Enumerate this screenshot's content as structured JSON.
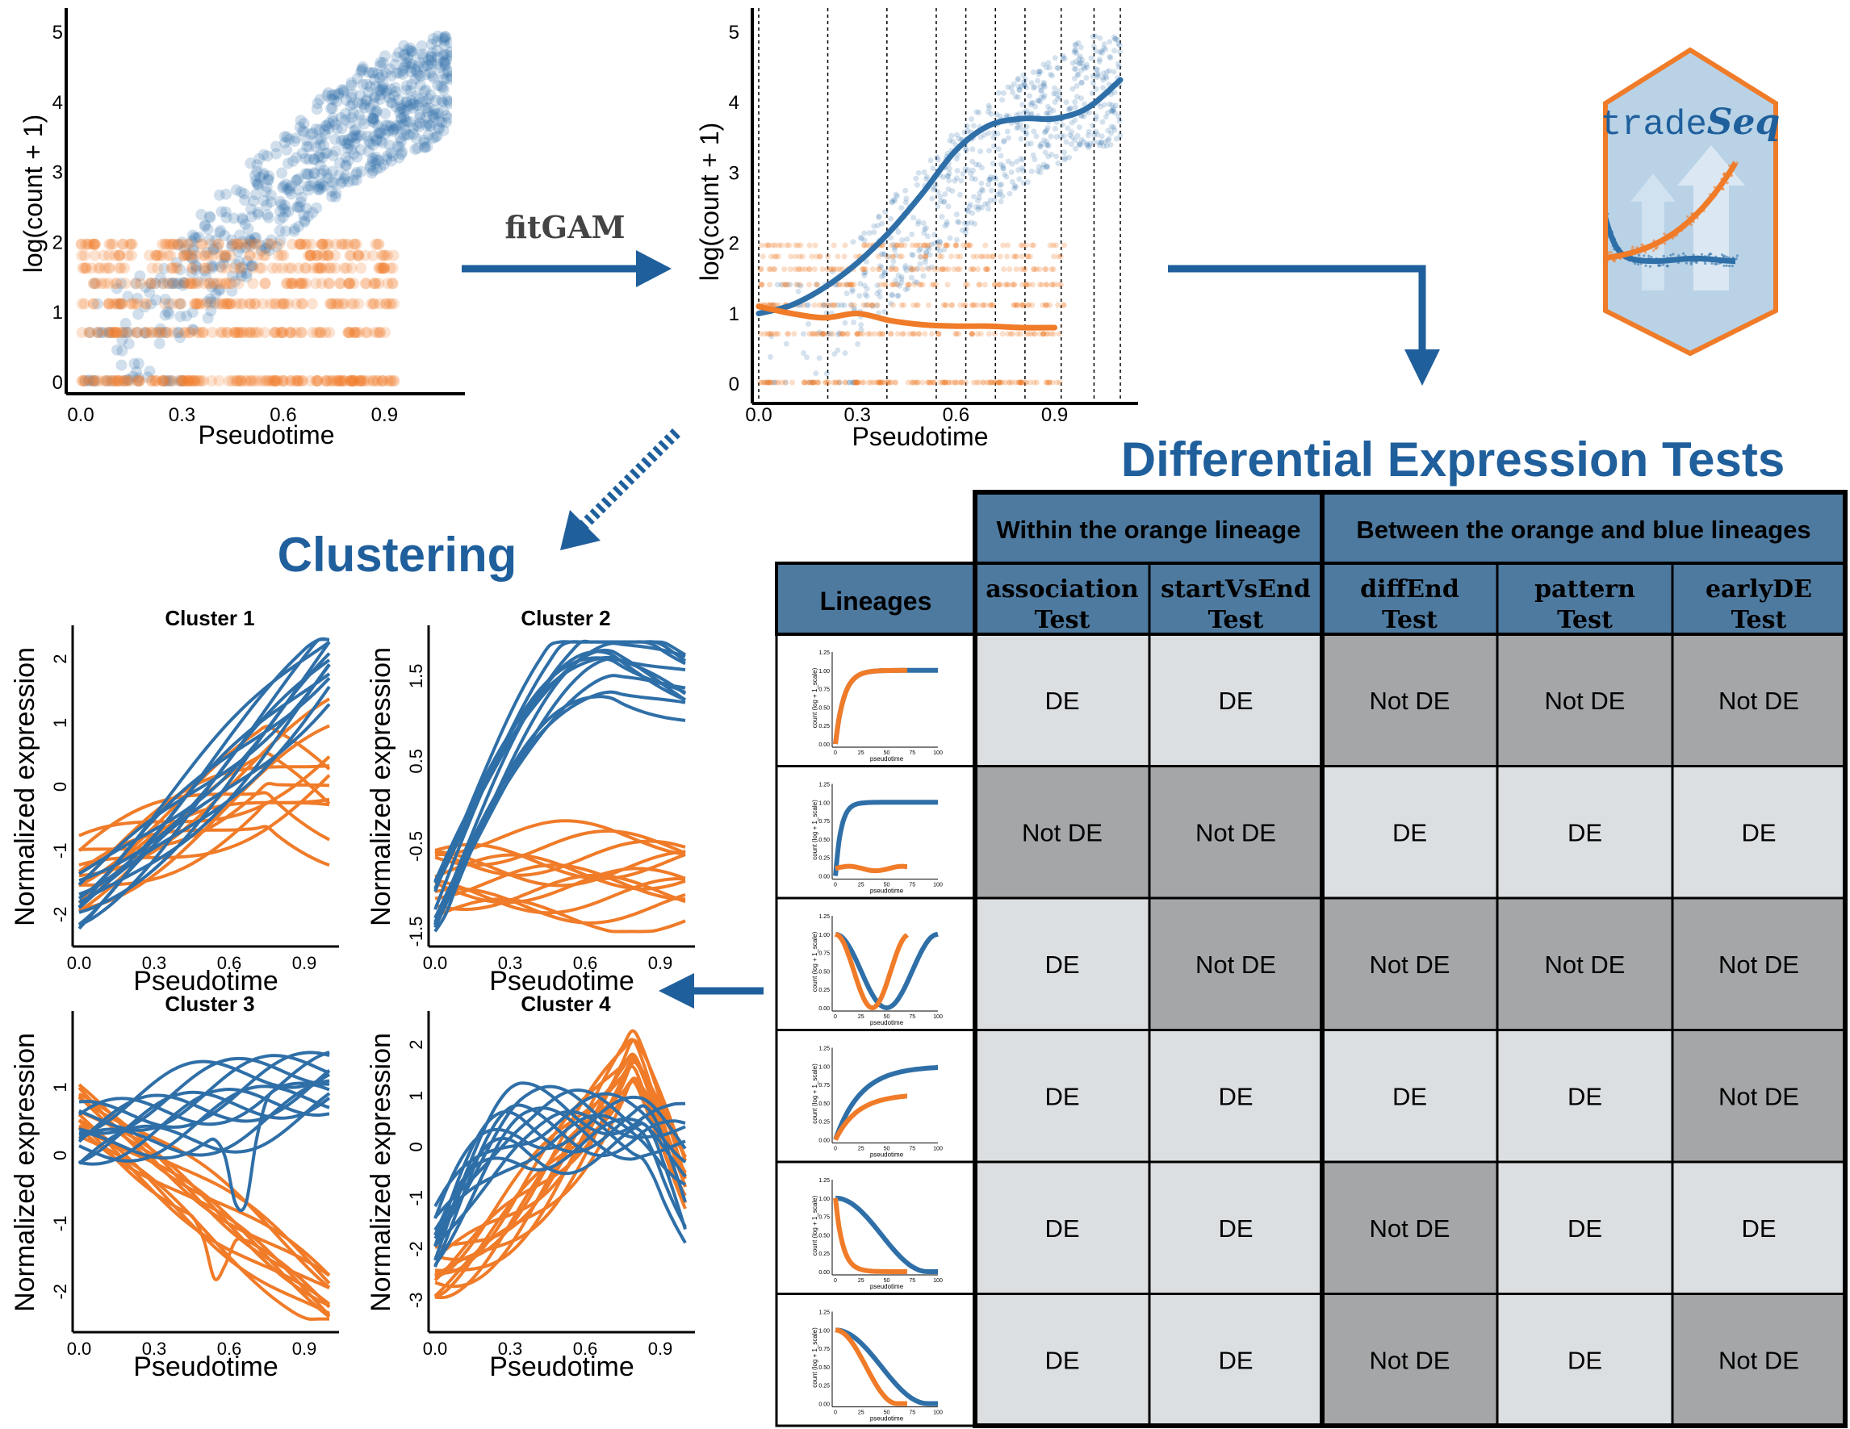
{
  "colors": {
    "blue": "#2f6fa8",
    "orange": "#f07b28",
    "dark_blue": "#1f5f9c",
    "header_fill": "#4e7aa0",
    "cell_light": "#dcdfe2",
    "cell_dark": "#a4a6a7",
    "logo_bg": "#b9d2e6"
  },
  "arrow_label": "fitGAM",
  "clustering_title": "Clustering",
  "de_title": "Differential Expression Tests",
  "logo": {
    "text_a": "trade",
    "text_b": "Seq"
  },
  "scatter_plot": {
    "xlabel": "Pseudotime",
    "ylabel": "log(count + 1)",
    "xticks": [
      "0.0",
      "0.3",
      "0.6",
      "0.9"
    ],
    "yticks": [
      "0",
      "1",
      "2",
      "3",
      "4",
      "5"
    ]
  },
  "fit_plot": {
    "xlabel": "Pseudotime",
    "ylabel": "log(count + 1)",
    "xticks": [
      "0.0",
      "0.3",
      "0.6",
      "0.9"
    ],
    "yticks": [
      "0",
      "1",
      "2",
      "3",
      "4",
      "5"
    ]
  },
  "chart_data": [
    {
      "type": "scatter",
      "xlabel": "Pseudotime",
      "ylabel": "log(count + 1)",
      "xlim": [
        0,
        1.1
      ],
      "ylim": [
        0,
        5
      ],
      "series": [
        {
          "color": "blue",
          "description_trend": "rises from ~0.3 to ~4.2 across pseudotime"
        },
        {
          "color": "orange",
          "description_trend": "stays at discrete low levels 0-1.6"
        }
      ]
    },
    {
      "type": "line",
      "xlabel": "Pseudotime",
      "ylabel": "log(count + 1)",
      "xlim": [
        0,
        1.1
      ],
      "ylim": [
        0,
        5
      ],
      "knots": [
        0.0,
        0.21,
        0.39,
        0.54,
        0.63,
        0.72,
        0.81,
        0.92,
        1.02,
        1.1
      ],
      "series": [
        {
          "color": "blue",
          "x": [
            0.0,
            0.1,
            0.2,
            0.3,
            0.4,
            0.5,
            0.6,
            0.7,
            0.8,
            0.9,
            1.0,
            1.1
          ],
          "y": [
            0.98,
            1.1,
            1.35,
            1.7,
            2.15,
            2.7,
            3.3,
            3.65,
            3.75,
            3.75,
            3.9,
            4.3
          ]
        },
        {
          "color": "orange",
          "x": [
            0.0,
            0.1,
            0.2,
            0.3,
            0.4,
            0.5,
            0.6,
            0.7,
            0.8,
            0.9
          ],
          "y": [
            1.08,
            0.98,
            0.92,
            0.98,
            0.88,
            0.82,
            0.8,
            0.8,
            0.78,
            0.78
          ]
        }
      ]
    },
    {
      "type": "line",
      "title": "Cluster 1",
      "xlabel": "Pseudotime",
      "ylabel": "Normalized expression",
      "ylim": [
        -2.4,
        2.4
      ]
    },
    {
      "type": "line",
      "title": "Cluster 2",
      "xlabel": "Pseudotime",
      "ylabel": "Normalized expression",
      "ylim": [
        -1.6,
        2.0
      ]
    },
    {
      "type": "line",
      "title": "Cluster 3",
      "xlabel": "Pseudotime",
      "ylabel": "Normalized expression",
      "ylim": [
        -2.5,
        2.0
      ]
    },
    {
      "type": "line",
      "title": "Cluster 4",
      "xlabel": "Pseudotime",
      "ylabel": "Normalized expression",
      "ylim": [
        -3.5,
        2.5
      ]
    }
  ],
  "clusters": [
    {
      "title": "Cluster 1",
      "yticks": [
        "-2",
        "-1",
        "0",
        "1",
        "2"
      ],
      "xticks": [
        "0.0",
        "0.3",
        "0.6",
        "0.9"
      ],
      "xlabel": "Pseudotime",
      "ylabel": "Normalized expression"
    },
    {
      "title": "Cluster 2",
      "yticks": [
        "-1.5",
        "-0.5",
        "0.5",
        "1.5"
      ],
      "xticks": [
        "0.0",
        "0.3",
        "0.6",
        "0.9"
      ],
      "xlabel": "Pseudotime",
      "ylabel": "Normalized expression"
    },
    {
      "title": "Cluster 3",
      "yticks": [
        "-2",
        "-1",
        "0",
        "1"
      ],
      "xticks": [
        "0.0",
        "0.3",
        "0.6",
        "0.9"
      ],
      "xlabel": "Pseudotime",
      "ylabel": "Normalized expression"
    },
    {
      "title": "Cluster 4",
      "yticks": [
        "-3",
        "-2",
        "-1",
        "0",
        "1",
        "2"
      ],
      "xticks": [
        "0.0",
        "0.3",
        "0.6",
        "0.9"
      ],
      "xlabel": "Pseudotime",
      "ylabel": "Normalized expression"
    }
  ],
  "table": {
    "group_within": "Within the orange lineage",
    "group_between": "Between the orange and blue lineages",
    "lineages_header": "Lineages",
    "tests": [
      {
        "line1": "association",
        "line2": "Test"
      },
      {
        "line1": "startVsEnd",
        "line2": "Test"
      },
      {
        "line1": "diffEnd",
        "line2": "Test"
      },
      {
        "line1": "pattern",
        "line2": "Test"
      },
      {
        "line1": "earlyDE",
        "line2": "Test"
      }
    ],
    "thumb_ylabel": "count (log + 1_scale)",
    "thumb_xlabel": "pseudotime",
    "thumb_yticks": [
      "0.00",
      "0.25",
      "0.50",
      "0.75",
      "1.00",
      "1.25"
    ],
    "thumb_xticks": [
      "0",
      "25",
      "50",
      "75",
      "100"
    ],
    "rows": [
      [
        "DE",
        "DE",
        "Not DE",
        "Not DE",
        "Not DE"
      ],
      [
        "Not DE",
        "Not DE",
        "DE",
        "DE",
        "DE"
      ],
      [
        "DE",
        "Not DE",
        "Not DE",
        "Not DE",
        "Not DE"
      ],
      [
        "DE",
        "DE",
        "DE",
        "DE",
        "Not DE"
      ],
      [
        "DE",
        "DE",
        "Not DE",
        "DE",
        "DE"
      ],
      [
        "DE",
        "DE",
        "Not DE",
        "DE",
        "Not DE"
      ]
    ]
  }
}
